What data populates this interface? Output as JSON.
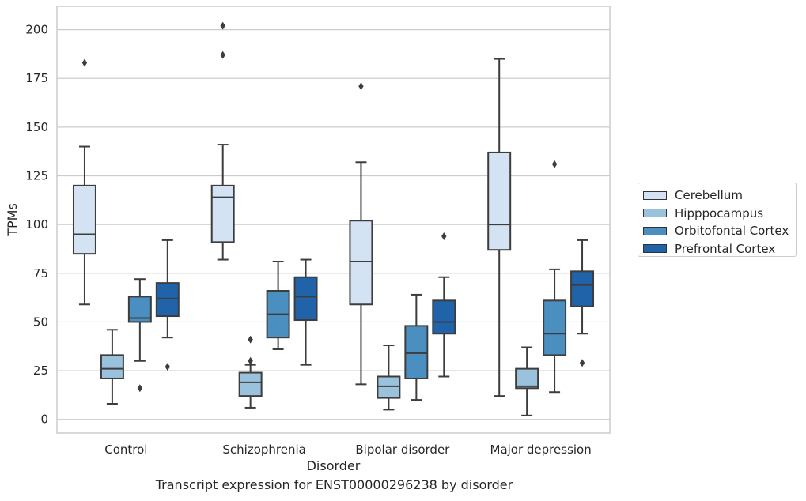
{
  "chart_data": {
    "type": "box",
    "caption": "Transcript expression for ENST00000296238 by disorder",
    "xlabel": "Disorder",
    "ylabel": "TPMs",
    "ylim": [
      -7,
      212
    ],
    "yticks": [
      0,
      25,
      50,
      75,
      100,
      125,
      150,
      175,
      200
    ],
    "grid": "horizontal",
    "legend_position": "right",
    "categories": [
      "Control",
      "Schizophrenia",
      "Bipolar disorder",
      "Major depression"
    ],
    "series": [
      {
        "name": "Cerebellum",
        "color": "#d4e3f3",
        "boxes": [
          {
            "whislo": 59,
            "q1": 85,
            "med": 95,
            "q3": 120,
            "whishi": 140,
            "fliers": [
              183
            ]
          },
          {
            "whislo": 82,
            "q1": 91,
            "med": 114,
            "q3": 120,
            "whishi": 141,
            "fliers": [
              187,
              202
            ]
          },
          {
            "whislo": 18,
            "q1": 59,
            "med": 81,
            "q3": 102,
            "whishi": 132,
            "fliers": [
              171
            ]
          },
          {
            "whislo": 12,
            "q1": 87,
            "med": 100,
            "q3": 137,
            "whishi": 185,
            "fliers": []
          }
        ]
      },
      {
        "name": "Hipppocampus",
        "color": "#9ac2dc",
        "boxes": [
          {
            "whislo": 8,
            "q1": 21,
            "med": 26,
            "q3": 33,
            "whishi": 46,
            "fliers": []
          },
          {
            "whislo": 6,
            "q1": 12,
            "med": 19,
            "q3": 24,
            "whishi": 28,
            "fliers": [
              30,
              41
            ]
          },
          {
            "whislo": 5,
            "q1": 11,
            "med": 17,
            "q3": 22,
            "whishi": 38,
            "fliers": []
          },
          {
            "whislo": 2,
            "q1": 16,
            "med": 17,
            "q3": 26,
            "whishi": 37,
            "fliers": []
          }
        ]
      },
      {
        "name": "Orbitofontal Cortex",
        "color": "#4b8fc0",
        "boxes": [
          {
            "whislo": 30,
            "q1": 50,
            "med": 52,
            "q3": 63,
            "whishi": 72,
            "fliers": [
              16
            ]
          },
          {
            "whislo": 36,
            "q1": 42,
            "med": 54,
            "q3": 66,
            "whishi": 81,
            "fliers": []
          },
          {
            "whislo": 10,
            "q1": 21,
            "med": 34,
            "q3": 48,
            "whishi": 64,
            "fliers": []
          },
          {
            "whislo": 14,
            "q1": 33,
            "med": 44,
            "q3": 61,
            "whishi": 77,
            "fliers": [
              131
            ]
          }
        ]
      },
      {
        "name": "Prefrontal Cortex",
        "color": "#2063a8",
        "boxes": [
          {
            "whislo": 42,
            "q1": 53,
            "med": 62,
            "q3": 70,
            "whishi": 92,
            "fliers": [
              27
            ]
          },
          {
            "whislo": 28,
            "q1": 51,
            "med": 63,
            "q3": 73,
            "whishi": 82,
            "fliers": []
          },
          {
            "whislo": 22,
            "q1": 44,
            "med": 50,
            "q3": 61,
            "whishi": 73,
            "fliers": [
              94
            ]
          },
          {
            "whislo": 44,
            "q1": 58,
            "med": 69,
            "q3": 76,
            "whishi": 92,
            "fliers": [
              29
            ]
          }
        ]
      }
    ]
  }
}
